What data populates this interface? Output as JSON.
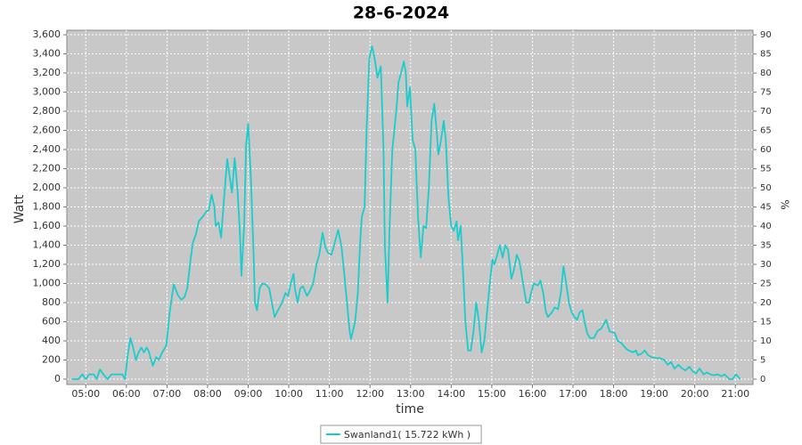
{
  "chart_data": {
    "type": "line",
    "title": "28-6-2024",
    "xlabel": "time",
    "ylabel": "Watt",
    "y2label": "%",
    "x": [
      279,
      289,
      295,
      300,
      305,
      312,
      316,
      321,
      326,
      332,
      338,
      354,
      358,
      362,
      366,
      370,
      374,
      378,
      382,
      386,
      390,
      393,
      399,
      404,
      408,
      413,
      419,
      424,
      430,
      436,
      441,
      446,
      450,
      454,
      458,
      463,
      467,
      473,
      478,
      482,
      486,
      490,
      492,
      496,
      500,
      505,
      509,
      513,
      516,
      520,
      524,
      528,
      530,
      534,
      537,
      540,
      544,
      548,
      550,
      553,
      557,
      561,
      566,
      571,
      575,
      579,
      584,
      590,
      595,
      599,
      603,
      607,
      609,
      613,
      617,
      621,
      627,
      631,
      636,
      641,
      645,
      650,
      654,
      658,
      663,
      667,
      673,
      678,
      682,
      686,
      690,
      692,
      698,
      702,
      706,
      708,
      712,
      715,
      719,
      723,
      727,
      731,
      733,
      736,
      740,
      742,
      746,
      749,
      753,
      756,
      760,
      762,
      766,
      770,
      773,
      775,
      779,
      783,
      787,
      791,
      795,
      799,
      803,
      807,
      811,
      815,
      819,
      821,
      825,
      829,
      832,
      836,
      840,
      844,
      848,
      850,
      854,
      857,
      861,
      865,
      869,
      873,
      877,
      881,
      885,
      889,
      893,
      897,
      901,
      904,
      908,
      912,
      916,
      920,
      924,
      929,
      933,
      937,
      941,
      945,
      951,
      955,
      958,
      962,
      968,
      972,
      976,
      980,
      983,
      989,
      993,
      998,
      1002,
      1006,
      1010,
      1014,
      1018,
      1022,
      1026,
      1030,
      1034,
      1037,
      1041,
      1045,
      1051,
      1056,
      1062,
      1069,
      1074,
      1082,
      1086,
      1091,
      1097,
      1102,
      1109,
      1113,
      1116,
      1122,
      1126,
      1131,
      1136,
      1142,
      1148,
      1155,
      1160,
      1165,
      1170,
      1176,
      1180,
      1186,
      1192,
      1197,
      1202,
      1207,
      1213,
      1218,
      1223,
      1228,
      1234,
      1239,
      1244,
      1251,
      1256,
      1261,
      1267
    ],
    "series": [
      {
        "name": "Swanland1( 15.722 kWh )",
        "color": "#1ccccc",
        "values": [
          0,
          0,
          50,
          0,
          50,
          50,
          0,
          100,
          50,
          0,
          50,
          50,
          0,
          250,
          430,
          330,
          200,
          280,
          330,
          280,
          330,
          290,
          140,
          230,
          200,
          280,
          350,
          700,
          990,
          880,
          830,
          860,
          950,
          1200,
          1420,
          1520,
          1650,
          1700,
          1750,
          1770,
          1930,
          1800,
          1600,
          1640,
          1480,
          1950,
          2300,
          2100,
          1950,
          2310,
          2000,
          1500,
          1080,
          1600,
          2450,
          2670,
          2100,
          1300,
          800,
          720,
          950,
          1000,
          990,
          950,
          800,
          650,
          720,
          800,
          900,
          870,
          1000,
          1100,
          950,
          800,
          950,
          970,
          870,
          920,
          1000,
          1200,
          1300,
          1530,
          1380,
          1320,
          1300,
          1400,
          1560,
          1380,
          1100,
          800,
          500,
          420,
          600,
          900,
          1500,
          1700,
          1800,
          2600,
          3350,
          3480,
          3350,
          3150,
          3200,
          3270,
          2400,
          1400,
          800,
          1600,
          2400,
          2600,
          2900,
          3100,
          3200,
          3320,
          3200,
          2850,
          3050,
          2500,
          2400,
          1700,
          1270,
          1600,
          1580,
          2000,
          2700,
          2880,
          2550,
          2350,
          2500,
          2700,
          2500,
          1900,
          1600,
          1550,
          1650,
          1450,
          1600,
          1200,
          600,
          300,
          300,
          500,
          800,
          600,
          280,
          400,
          700,
          1000,
          1250,
          1200,
          1300,
          1400,
          1270,
          1400,
          1350,
          1050,
          1150,
          1300,
          1230,
          1050,
          800,
          800,
          900,
          1000,
          980,
          1030,
          900,
          700,
          650,
          700,
          750,
          730,
          900,
          1180,
          1000,
          800,
          700,
          650,
          620,
          700,
          720,
          600,
          480,
          430,
          430,
          500,
          530,
          620,
          500,
          480,
          400,
          380,
          330,
          300,
          280,
          300,
          250,
          270,
          300,
          250,
          230,
          220,
          220,
          200,
          150,
          180,
          110,
          150,
          120,
          90,
          130,
          80,
          60,
          110,
          50,
          70,
          50,
          40,
          50,
          30,
          50,
          0,
          0,
          50,
          0
        ]
      }
    ],
    "xlim": [
      272,
      1286
    ],
    "xticks": [
      {
        "value": 300,
        "label": "05:00"
      },
      {
        "value": 360,
        "label": "06:00"
      },
      {
        "value": 420,
        "label": "07:00"
      },
      {
        "value": 480,
        "label": "08:00"
      },
      {
        "value": 540,
        "label": "09:00"
      },
      {
        "value": 600,
        "label": "10:00"
      },
      {
        "value": 660,
        "label": "11:00"
      },
      {
        "value": 720,
        "label": "12:00"
      },
      {
        "value": 780,
        "label": "13:00"
      },
      {
        "value": 840,
        "label": "14:00"
      },
      {
        "value": 900,
        "label": "15:00"
      },
      {
        "value": 960,
        "label": "16:00"
      },
      {
        "value": 1020,
        "label": "17:00"
      },
      {
        "value": 1080,
        "label": "18:00"
      },
      {
        "value": 1140,
        "label": "19:00"
      },
      {
        "value": 1200,
        "label": "20:00"
      },
      {
        "value": 1260,
        "label": "21:00"
      }
    ],
    "ylim": [
      -56,
      3647
    ],
    "yticks": [
      0,
      200,
      400,
      600,
      800,
      {
        "value": 1000,
        "label": "1,000"
      },
      {
        "value": 1200,
        "label": "1,200"
      },
      {
        "value": 1400,
        "label": "1,400"
      },
      {
        "value": 1600,
        "label": "1,600"
      },
      {
        "value": 1800,
        "label": "1,800"
      },
      {
        "value": 2000,
        "label": "2,000"
      },
      {
        "value": 2200,
        "label": "2,200"
      },
      {
        "value": 2400,
        "label": "2,400"
      },
      {
        "value": 2600,
        "label": "2,600"
      },
      {
        "value": 2800,
        "label": "2,800"
      },
      {
        "value": 3000,
        "label": "3,000"
      },
      {
        "value": 3200,
        "label": "3,200"
      },
      {
        "value": 3400,
        "label": "3,400"
      },
      {
        "value": 3600,
        "label": "3,600"
      }
    ],
    "y2lim": [
      -1.4,
      91.2
    ],
    "y2ticks": [
      0,
      5,
      10,
      15,
      20,
      25,
      30,
      35,
      40,
      45,
      50,
      55,
      60,
      65,
      70,
      75,
      80,
      85,
      90
    ],
    "grid": true,
    "legend": "bottom",
    "background": "#c8c8c8"
  }
}
